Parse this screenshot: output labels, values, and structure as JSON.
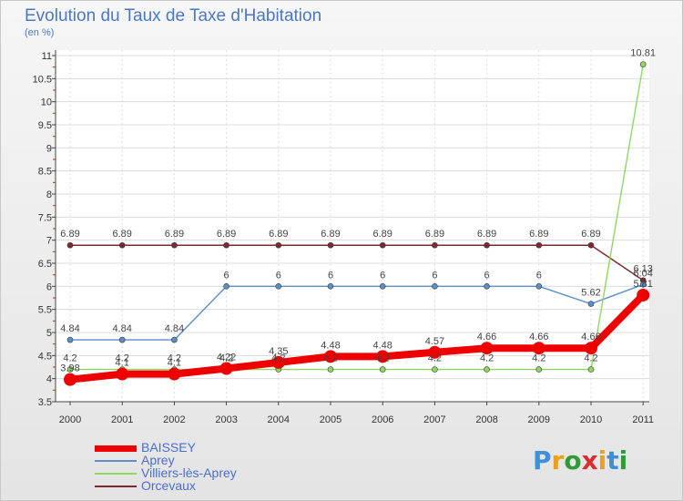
{
  "header": {
    "title": "Evolution du Taux de Taxe d'Habitation",
    "subtitle": "(en %)"
  },
  "logo": {
    "letters": [
      "P",
      "r",
      "o",
      "x",
      "i",
      "t",
      "i"
    ],
    "colors": [
      "#3c8fd8",
      "#e8a020",
      "#2f9a3a",
      "#d83030",
      "#e8a020",
      "#3c8fd8",
      "#2f9a3a"
    ]
  },
  "chart_data": {
    "type": "line",
    "title": "Evolution du Taux de Taxe d'Habitation",
    "ylabel": "(en %)",
    "xlabel": "",
    "ylim": [
      3.5,
      11
    ],
    "yticks": [
      "3.5",
      "4",
      "4.5",
      "5",
      "5.5",
      "6",
      "6.5",
      "7",
      "7.5",
      "8",
      "8.5",
      "9",
      "9.5",
      "10",
      "10.5",
      "11"
    ],
    "categories": [
      "2000",
      "2001",
      "2002",
      "2003",
      "2004",
      "2005",
      "2006",
      "2007",
      "2008",
      "2009",
      "2010",
      "2011"
    ],
    "series": [
      {
        "name": "Orcevaux",
        "color": "#7a2a30",
        "values": [
          6.89,
          6.89,
          6.89,
          6.89,
          6.89,
          6.89,
          6.89,
          6.89,
          6.89,
          6.89,
          6.89,
          6.13
        ],
        "labels": [
          "6.89",
          "6.89",
          "6.89",
          "6.89",
          "6.89",
          "6.89",
          "6.89",
          "6.89",
          "6.89",
          "6.89",
          "6.89",
          "6.13"
        ]
      },
      {
        "name": "Aprey",
        "color": "#5a8fc8",
        "values": [
          4.84,
          4.84,
          4.84,
          6,
          6,
          6,
          6,
          6,
          6,
          6,
          5.62,
          6.04
        ],
        "labels": [
          "4.84",
          "4.84",
          "4.84",
          "6",
          "6",
          "6",
          "6",
          "6",
          "6",
          "6",
          "5.62",
          "6.04"
        ]
      },
      {
        "name": "Villiers-lès-Aprey",
        "color": "#8fd860",
        "values": [
          4.2,
          4.2,
          4.2,
          4.2,
          4.2,
          4.2,
          4.2,
          4.2,
          4.2,
          4.2,
          4.2,
          10.81
        ],
        "labels": [
          "4.2",
          "4.2",
          "4.2",
          "4.2",
          "4.2",
          "4.2",
          "4.2",
          "4.2",
          "4.2",
          "4.2",
          "4.2",
          "10.81"
        ]
      },
      {
        "name": "BAISSEY",
        "color": "#ee0000",
        "values": [
          3.98,
          4.1,
          4.1,
          4.22,
          4.35,
          4.48,
          4.48,
          4.57,
          4.66,
          4.66,
          4.66,
          5.81
        ],
        "labels": [
          "3.98",
          "4.1",
          "4.1",
          "4.22",
          "4.35",
          "4.48",
          "4.48",
          "4.57",
          "4.66",
          "4.66",
          "4.66",
          "5.81"
        ]
      }
    ],
    "legend": [
      "BAISSEY",
      "Aprey",
      "Villiers-lès-Aprey",
      "Orcevaux"
    ]
  }
}
